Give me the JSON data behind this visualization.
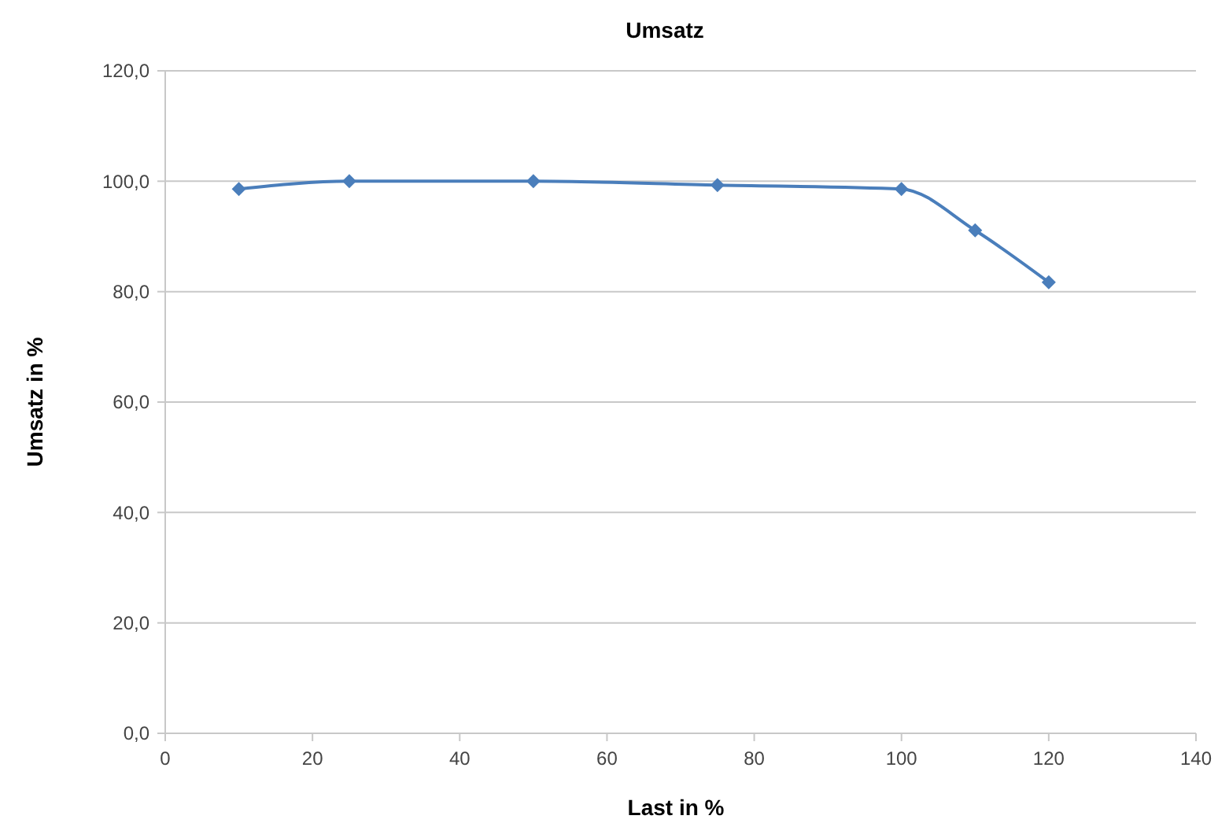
{
  "chart_data": {
    "type": "line",
    "title": "Umsatz",
    "xlabel": "Last in %",
    "ylabel": "Umsatz in %",
    "x": [
      10,
      25,
      50,
      75,
      100,
      110,
      120
    ],
    "series": [
      {
        "color": "#4a7ebb",
        "values": [
          98.6,
          100,
          100,
          99.3,
          98.6,
          91.1,
          81.7
        ]
      }
    ],
    "xlim": [
      0,
      140
    ],
    "xticks": [
      0,
      20,
      40,
      60,
      80,
      100,
      120,
      140
    ],
    "ylim": [
      0,
      120
    ],
    "yticks": [
      {
        "value": 0,
        "label": "0,0"
      },
      {
        "value": 20,
        "label": "20,0"
      },
      {
        "value": 40,
        "label": "40,0"
      },
      {
        "value": 60,
        "label": "60,0"
      },
      {
        "value": 80,
        "label": "80,0"
      },
      {
        "value": 100,
        "label": "100,0"
      },
      {
        "value": 120,
        "label": "120,0"
      }
    ],
    "grid": "y",
    "marker": "diamond",
    "line_style": "solid"
  }
}
